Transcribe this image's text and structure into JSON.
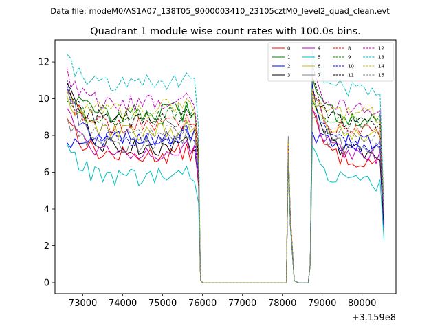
{
  "chart_data": {
    "type": "line",
    "suptitle": "Data file: modeM0/AS1A07_138T05_9000003410_23105cztM0_level2_quad_clean.evt",
    "title": "Quadrant 1 module wise count rates with 100.0s bins.",
    "xlabel": "",
    "ylabel": "",
    "x_offset_label": "+3.159e8",
    "xlim": [
      72300,
      80850
    ],
    "ylim": [
      -0.6,
      13.2
    ],
    "xticks": [
      73000,
      74000,
      75000,
      76000,
      77000,
      78000,
      79000,
      80000
    ],
    "yticks": [
      0,
      2,
      4,
      6,
      8,
      10,
      12
    ],
    "xtick_labels": [
      "73000",
      "74000",
      "75000",
      "76000",
      "77000",
      "78000",
      "79000",
      "80000"
    ],
    "ytick_labels": [
      "0",
      "2",
      "4",
      "6",
      "8",
      "10",
      "12"
    ],
    "x_segments": [
      {
        "start": 72600,
        "end": 75900
      },
      {
        "start": 78050,
        "end": 78650
      },
      {
        "start": 78750,
        "end": 80450
      }
    ],
    "x_end": 80550,
    "series": [
      {
        "name": "0",
        "color": "#ff0000",
        "dash": "solid",
        "base": 6.6,
        "first": 9.2,
        "last": 3.0
      },
      {
        "name": "1",
        "color": "#008000",
        "dash": "solid",
        "base": 8.9,
        "first": 10.8,
        "last": 3.3
      },
      {
        "name": "2",
        "color": "#0000ff",
        "dash": "solid",
        "base": 7.6,
        "first": 7.8,
        "last": 3.1
      },
      {
        "name": "3",
        "color": "#000000",
        "dash": "solid",
        "base": 7.0,
        "first": 11.0,
        "last": 2.8
      },
      {
        "name": "4",
        "color": "#bf00bf",
        "dash": "solid",
        "base": 6.8,
        "first": 9.6,
        "last": 3.2
      },
      {
        "name": "5",
        "color": "#00bfbf",
        "dash": "solid",
        "base": 5.4,
        "first": 7.6,
        "last": 2.3
      },
      {
        "name": "6",
        "color": "#bfbf00",
        "dash": "solid",
        "base": 7.9,
        "first": 10.2,
        "last": 3.4
      },
      {
        "name": "7",
        "color": "#808080",
        "dash": "solid",
        "base": 7.3,
        "first": 9.0,
        "last": 3.5
      },
      {
        "name": "8",
        "color": "#ff0000",
        "dash": "dashed",
        "base": 8.2,
        "first": 10.4,
        "last": 3.6
      },
      {
        "name": "9",
        "color": "#008000",
        "dash": "dashed",
        "base": 8.7,
        "first": 9.8,
        "last": 3.4
      },
      {
        "name": "10",
        "color": "#0000ff",
        "dash": "dashed",
        "base": 7.4,
        "first": 10.6,
        "last": 3.0
      },
      {
        "name": "11",
        "color": "#000000",
        "dash": "dashed",
        "base": 8.5,
        "first": 10.9,
        "last": 3.7
      },
      {
        "name": "12",
        "color": "#bf00bf",
        "dash": "dashed",
        "base": 9.4,
        "first": 11.5,
        "last": 3.8
      },
      {
        "name": "13",
        "color": "#00bfbf",
        "dash": "dashed",
        "base": 10.5,
        "first": 12.2,
        "last": 4.0
      },
      {
        "name": "14",
        "color": "#bfbf00",
        "dash": "dashed",
        "base": 9.1,
        "first": 10.1,
        "last": 3.9
      },
      {
        "name": "15",
        "color": "#808080",
        "dash": "dashed",
        "base": 7.8,
        "first": 10.3,
        "last": 3.5
      }
    ],
    "legend": {
      "location": "upper-right",
      "columns": 4
    }
  }
}
